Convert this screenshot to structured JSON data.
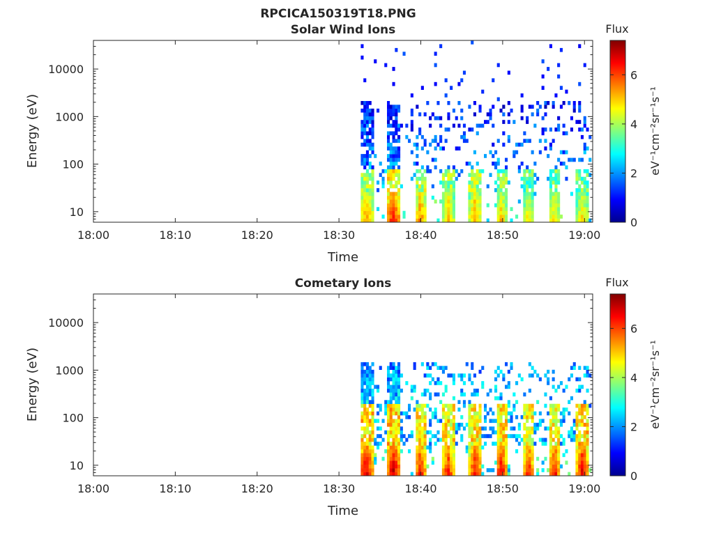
{
  "figure": {
    "title": "RPCICA150319T18.PNG"
  },
  "colorbar": {
    "title": "Flux",
    "label": "eV⁻¹cm⁻²sr⁻¹s⁻¹",
    "range": [
      0,
      7.4
    ],
    "ticks": [
      "0",
      "2",
      "4",
      "6"
    ],
    "colormap": "jet",
    "colors": [
      "#00008f",
      "#0000ff",
      "#0080ff",
      "#00ffff",
      "#80ff80",
      "#ffff00",
      "#ff8000",
      "#ff0000",
      "#800000"
    ]
  },
  "chart_data": [
    {
      "type": "heatmap",
      "title": "Solar Wind Ions",
      "xlabel": "Time",
      "ylabel": "Energy (eV)",
      "x_ticks": [
        "18:00",
        "18:10",
        "18:20",
        "18:30",
        "18:40",
        "18:50",
        "19:00"
      ],
      "y_ticks": [
        "10",
        "100",
        "1000",
        "10000"
      ],
      "y_scale": "log",
      "x_range_minutes": [
        0,
        61
      ],
      "y_range_eV": [
        6,
        40000
      ],
      "data_start": "18:32:40",
      "bursts": [
        {
          "time_min": 33.2,
          "width_min": 1.4,
          "peak_flux": 5.5
        },
        {
          "time_min": 36.5,
          "width_min": 1.4,
          "peak_flux": 6.5
        },
        {
          "time_min": 39.8,
          "width_min": 0.9,
          "peak_flux": 5.8
        },
        {
          "time_min": 43.2,
          "width_min": 0.9,
          "peak_flux": 5.4
        },
        {
          "time_min": 46.5,
          "width_min": 1.0,
          "peak_flux": 5.6
        },
        {
          "time_min": 49.7,
          "width_min": 0.9,
          "peak_flux": 5.2
        },
        {
          "time_min": 53.0,
          "width_min": 0.8,
          "peak_flux": 4.9
        },
        {
          "time_min": 56.2,
          "width_min": 0.9,
          "peak_flux": 5.1
        },
        {
          "time_min": 59.6,
          "width_min": 1.0,
          "peak_flux": 5.0
        }
      ]
    },
    {
      "type": "heatmap",
      "title": "Cometary Ions",
      "xlabel": "Time",
      "ylabel": "Energy (eV)",
      "x_ticks": [
        "18:00",
        "18:10",
        "18:20",
        "18:30",
        "18:40",
        "18:50",
        "19:00"
      ],
      "y_ticks": [
        "10",
        "100",
        "1000",
        "10000"
      ],
      "y_scale": "log",
      "x_range_minutes": [
        0,
        61
      ],
      "y_range_eV": [
        6,
        40000
      ],
      "data_start": "18:32:40",
      "bursts": [
        {
          "time_min": 33.2,
          "width_min": 1.4,
          "peak_flux": 6.9
        },
        {
          "time_min": 36.5,
          "width_min": 1.4,
          "peak_flux": 7.0
        },
        {
          "time_min": 39.8,
          "width_min": 0.9,
          "peak_flux": 6.6
        },
        {
          "time_min": 43.2,
          "width_min": 0.9,
          "peak_flux": 6.6
        },
        {
          "time_min": 46.5,
          "width_min": 1.0,
          "peak_flux": 6.7
        },
        {
          "time_min": 49.7,
          "width_min": 0.9,
          "peak_flux": 6.8
        },
        {
          "time_min": 53.0,
          "width_min": 0.8,
          "peak_flux": 6.5
        },
        {
          "time_min": 56.2,
          "width_min": 0.9,
          "peak_flux": 6.6
        },
        {
          "time_min": 59.6,
          "width_min": 1.0,
          "peak_flux": 6.9
        }
      ]
    }
  ]
}
